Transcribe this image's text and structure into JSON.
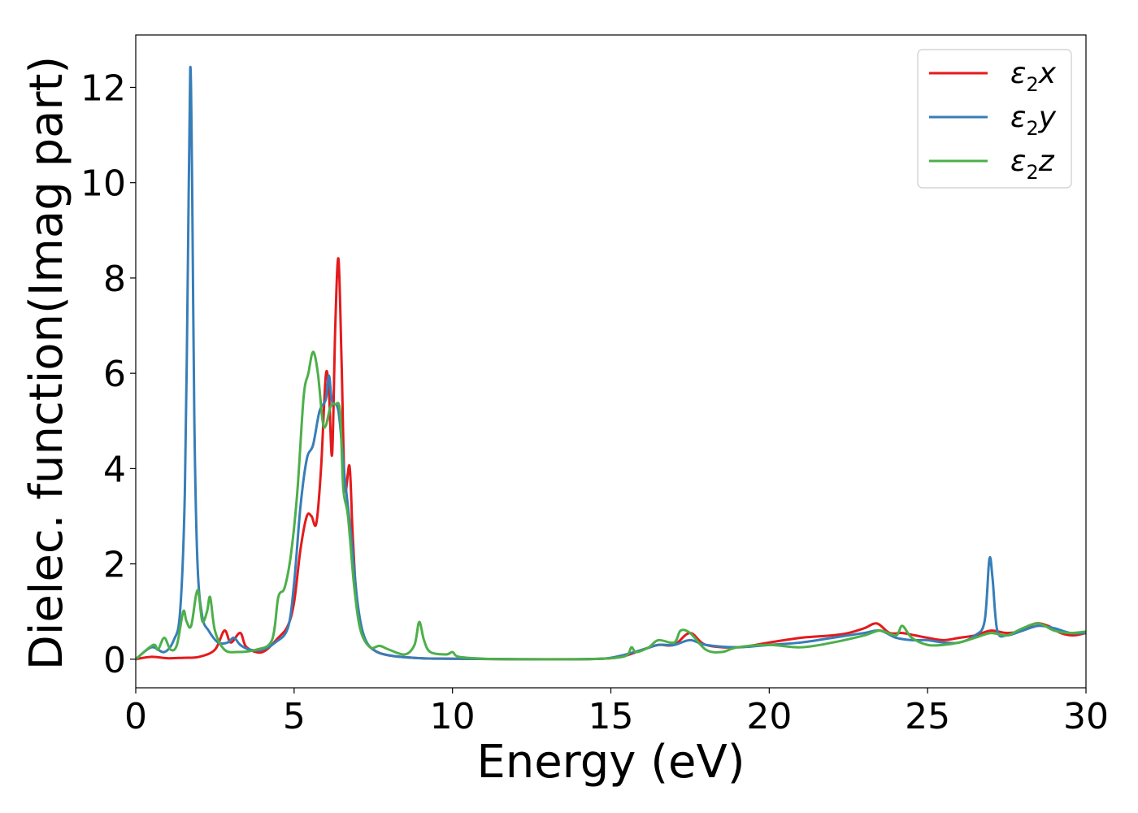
{
  "chart_data": {
    "type": "line",
    "xlabel": "Energy (eV)",
    "ylabel": "Dielec. function(Imag part)",
    "xlim": [
      0,
      30
    ],
    "ylim": [
      -0.6,
      13.1
    ],
    "xticks": [
      0,
      5,
      10,
      15,
      20,
      25,
      30
    ],
    "xtick_labels": [
      "0",
      "5",
      "10",
      "15",
      "20",
      "25",
      "30"
    ],
    "yticks": [
      0,
      2,
      4,
      6,
      8,
      10,
      12
    ],
    "ytick_labels": [
      "0",
      "2",
      "4",
      "6",
      "8",
      "10",
      "12"
    ],
    "grid": false,
    "legend_position": "top-right",
    "series": [
      {
        "name": "ε₂x",
        "legend_base": "ε",
        "legend_sub": "2",
        "legend_var": "x",
        "color": "#e41a1c",
        "x": [
          0,
          0.5,
          1.0,
          1.5,
          2.0,
          2.5,
          2.8,
          3.0,
          3.3,
          3.5,
          4.0,
          4.5,
          4.8,
          5.0,
          5.2,
          5.4,
          5.55,
          5.7,
          5.85,
          6.0,
          6.1,
          6.2,
          6.3,
          6.4,
          6.5,
          6.6,
          6.75,
          6.85,
          7.0,
          7.2,
          7.5,
          8.0,
          9.0,
          10.0,
          12.0,
          14.0,
          15.0,
          15.5,
          16.0,
          16.5,
          17.0,
          17.5,
          18.0,
          19.0,
          20.0,
          21.0,
          22.0,
          22.5,
          23.0,
          23.4,
          23.8,
          24.2,
          24.6,
          25.0,
          25.5,
          26.0,
          26.5,
          27.0,
          27.5,
          28.0,
          28.4,
          28.8,
          29.2,
          29.6,
          30.0
        ],
        "y": [
          0.0,
          0.05,
          0.02,
          0.03,
          0.05,
          0.2,
          0.6,
          0.35,
          0.55,
          0.25,
          0.15,
          0.45,
          0.7,
          1.2,
          2.3,
          3.0,
          3.0,
          2.85,
          4.0,
          5.95,
          5.6,
          4.3,
          7.0,
          8.4,
          6.2,
          3.6,
          4.05,
          2.6,
          1.0,
          0.45,
          0.2,
          0.08,
          0.02,
          0.01,
          0.0,
          0.0,
          0.02,
          0.08,
          0.2,
          0.3,
          0.3,
          0.55,
          0.3,
          0.25,
          0.35,
          0.45,
          0.5,
          0.55,
          0.65,
          0.75,
          0.55,
          0.55,
          0.5,
          0.45,
          0.4,
          0.45,
          0.5,
          0.6,
          0.55,
          0.6,
          0.75,
          0.7,
          0.55,
          0.5,
          0.55
        ]
      },
      {
        "name": "ε₂y",
        "legend_base": "ε",
        "legend_sub": "2",
        "legend_var": "y",
        "color": "#377eb8",
        "x": [
          0,
          0.5,
          0.9,
          1.2,
          1.4,
          1.55,
          1.65,
          1.72,
          1.78,
          1.85,
          1.95,
          2.1,
          2.3,
          2.6,
          2.9,
          3.1,
          3.3,
          3.6,
          4.0,
          4.4,
          4.8,
          5.0,
          5.2,
          5.4,
          5.6,
          5.8,
          6.0,
          6.1,
          6.2,
          6.4,
          6.6,
          6.8,
          7.0,
          7.2,
          7.5,
          8.0,
          9.0,
          10.0,
          12.0,
          14.0,
          15.0,
          16.0,
          16.5,
          17.0,
          17.5,
          18.0,
          19.0,
          20.0,
          21.0,
          22.0,
          22.5,
          23.0,
          23.5,
          24.0,
          24.5,
          25.0,
          25.5,
          26.0,
          26.5,
          26.8,
          26.95,
          27.05,
          27.2,
          27.5,
          28.0,
          28.5,
          29.0,
          29.5,
          30.0
        ],
        "y": [
          0.0,
          0.25,
          0.15,
          0.4,
          1.0,
          3.5,
          8.5,
          12.4,
          10.0,
          5.0,
          2.0,
          0.9,
          0.6,
          0.35,
          0.35,
          0.45,
          0.3,
          0.2,
          0.2,
          0.35,
          0.65,
          1.6,
          3.2,
          4.2,
          4.5,
          5.2,
          5.45,
          5.95,
          5.4,
          5.2,
          3.8,
          2.6,
          1.2,
          0.5,
          0.2,
          0.08,
          0.02,
          0.01,
          0.0,
          0.0,
          0.03,
          0.2,
          0.3,
          0.3,
          0.4,
          0.3,
          0.25,
          0.3,
          0.35,
          0.45,
          0.5,
          0.55,
          0.6,
          0.45,
          0.4,
          0.4,
          0.35,
          0.35,
          0.5,
          0.8,
          2.1,
          1.7,
          0.6,
          0.5,
          0.6,
          0.7,
          0.65,
          0.55,
          0.55
        ]
      },
      {
        "name": "ε₂z",
        "legend_base": "ε",
        "legend_sub": "2",
        "legend_var": "z",
        "color": "#4daf4a",
        "x": [
          0,
          0.55,
          0.7,
          0.9,
          1.1,
          1.3,
          1.5,
          1.6,
          1.75,
          1.95,
          2.1,
          2.25,
          2.35,
          2.5,
          2.8,
          3.2,
          3.8,
          4.3,
          4.5,
          4.7,
          4.9,
          5.1,
          5.3,
          5.45,
          5.6,
          5.75,
          5.9,
          6.0,
          6.15,
          6.3,
          6.45,
          6.55,
          6.7,
          6.9,
          7.1,
          7.4,
          7.7,
          8.0,
          8.5,
          8.8,
          8.95,
          9.1,
          9.3,
          9.8,
          10.0,
          10.2,
          11.0,
          12.0,
          14.0,
          15.0,
          15.5,
          15.65,
          15.8,
          16.2,
          16.5,
          17.0,
          17.2,
          17.5,
          18.0,
          18.5,
          19.0,
          20.0,
          21.0,
          22.0,
          23.0,
          23.5,
          24.0,
          24.2,
          24.5,
          25.0,
          25.5,
          26.0,
          26.5,
          27.0,
          27.5,
          28.0,
          28.5,
          29.0,
          29.5,
          30.0
        ],
        "y": [
          0.0,
          0.3,
          0.2,
          0.45,
          0.2,
          0.3,
          1.0,
          0.8,
          0.7,
          1.45,
          0.8,
          1.0,
          1.3,
          0.6,
          0.2,
          0.15,
          0.2,
          0.4,
          1.3,
          1.5,
          2.2,
          3.5,
          5.5,
          6.0,
          6.45,
          6.0,
          5.0,
          4.9,
          5.3,
          5.35,
          5.2,
          3.6,
          3.0,
          1.5,
          0.6,
          0.25,
          0.28,
          0.2,
          0.1,
          0.3,
          0.78,
          0.4,
          0.15,
          0.1,
          0.15,
          0.05,
          0.01,
          0.0,
          0.0,
          0.02,
          0.08,
          0.25,
          0.15,
          0.25,
          0.4,
          0.35,
          0.6,
          0.55,
          0.2,
          0.15,
          0.25,
          0.3,
          0.25,
          0.35,
          0.5,
          0.6,
          0.5,
          0.7,
          0.45,
          0.3,
          0.3,
          0.35,
          0.45,
          0.55,
          0.5,
          0.65,
          0.75,
          0.6,
          0.55,
          0.58
        ]
      }
    ]
  }
}
